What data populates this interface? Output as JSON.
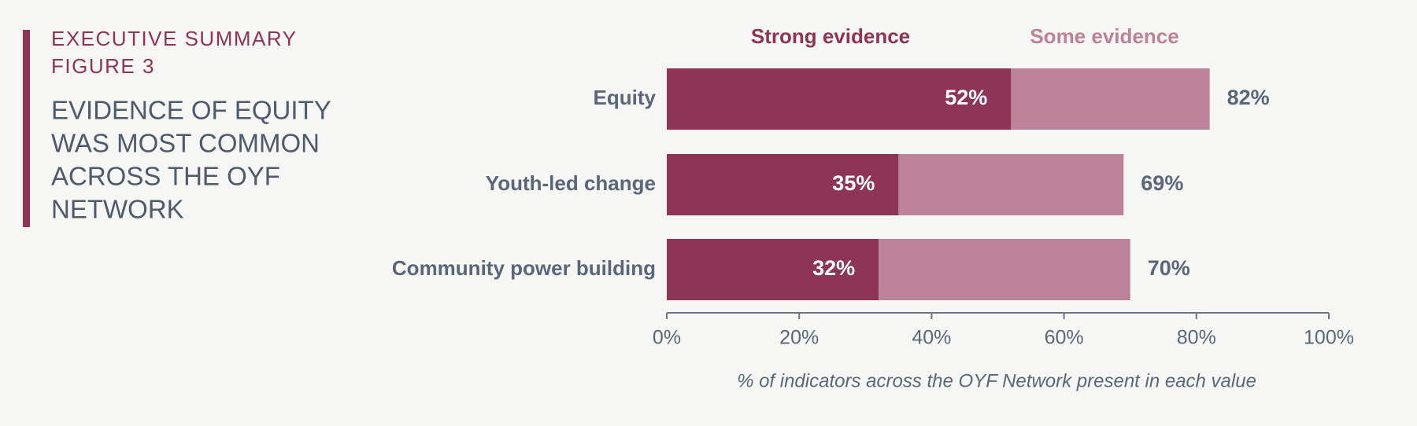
{
  "chart_data": {
    "type": "stacked-bar-horizontal",
    "kicker": [
      "EXECUTIVE SUMMARY",
      "FIGURE 3"
    ],
    "title": [
      "EVIDENCE OF EQUITY",
      "WAS MOST COMMON",
      "ACROSS THE OYF",
      "NETWORK"
    ],
    "categories": [
      "Equity",
      "Youth-led change",
      "Community power building"
    ],
    "series": [
      {
        "name": "Strong evidence",
        "color": "#8e3457",
        "values": [
          52,
          35,
          32
        ],
        "value_labels": [
          "52%",
          "35%",
          "32%"
        ]
      },
      {
        "name": "Some evidence",
        "color": "#bb8299",
        "values": [
          30,
          34,
          38
        ]
      }
    ],
    "totals": {
      "values": [
        82,
        69,
        70
      ],
      "value_labels": [
        "82%",
        "69%",
        "70%"
      ]
    },
    "xlim": [
      0,
      100
    ],
    "xticks": [
      {
        "value": 0,
        "label": "0%"
      },
      {
        "value": 20,
        "label": "20%"
      },
      {
        "value": 40,
        "label": "40%"
      },
      {
        "value": 60,
        "label": "60%"
      },
      {
        "value": 80,
        "label": "80%"
      },
      {
        "value": 100,
        "label": "100%"
      }
    ],
    "xlabel": "% of indicators across the OYF Network present in each value",
    "legend": "top"
  }
}
